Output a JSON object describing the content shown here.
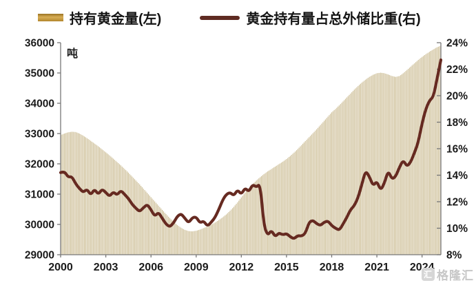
{
  "legend": {
    "items": [
      {
        "label": "持有黄金量(左)",
        "swatch": "bar",
        "color": "#bf9133"
      },
      {
        "label": "黄金持有量占总外储比重(右)",
        "swatch": "line",
        "color": "#5f2b22"
      }
    ]
  },
  "watermark": {
    "brand": "格隆汇",
    "logo_glyph": "汇"
  },
  "chart_data": {
    "type": "bar+line",
    "title": "",
    "unit_label": "吨",
    "left_axis": {
      "label": "吨",
      "range": [
        29000,
        36000
      ],
      "ticks": [
        36000,
        35000,
        34000,
        33000,
        32000,
        31000,
        30000,
        29000
      ]
    },
    "right_axis": {
      "range": [
        8,
        24
      ],
      "ticks": [
        "24%",
        "22%",
        "20%",
        "18%",
        "16%",
        "14%",
        "12%",
        "10%",
        "8%"
      ]
    },
    "x_axis": {
      "range": [
        2000,
        2025.25
      ],
      "ticks": [
        2000,
        2003,
        2006,
        2009,
        2012,
        2015,
        2018,
        2021,
        2024
      ]
    },
    "colors": {
      "bar": "#d0c29c",
      "line": "#662a21",
      "axis": "#777777",
      "tick_text": "#1a1a1a"
    },
    "x": [
      2000,
      2000.25,
      2000.5,
      2000.75,
      2001,
      2001.25,
      2001.5,
      2001.75,
      2002,
      2002.25,
      2002.5,
      2002.75,
      2003,
      2003.25,
      2003.5,
      2003.75,
      2004,
      2004.25,
      2004.5,
      2004.75,
      2005,
      2005.25,
      2005.5,
      2005.75,
      2006,
      2006.25,
      2006.5,
      2006.75,
      2007,
      2007.25,
      2007.5,
      2007.75,
      2008,
      2008.25,
      2008.5,
      2008.75,
      2009,
      2009.25,
      2009.5,
      2009.75,
      2010,
      2010.25,
      2010.5,
      2010.75,
      2011,
      2011.25,
      2011.5,
      2011.75,
      2012,
      2012.25,
      2012.5,
      2012.75,
      2013,
      2013.25,
      2013.5,
      2013.75,
      2014,
      2014.25,
      2014.5,
      2014.75,
      2015,
      2015.25,
      2015.5,
      2015.75,
      2016,
      2016.25,
      2016.5,
      2016.75,
      2017,
      2017.25,
      2017.5,
      2017.75,
      2018,
      2018.25,
      2018.5,
      2018.75,
      2019,
      2019.25,
      2019.5,
      2019.75,
      2020,
      2020.25,
      2020.5,
      2020.75,
      2021,
      2021.25,
      2021.5,
      2021.75,
      2022,
      2022.25,
      2022.5,
      2022.75,
      2023,
      2023.25,
      2023.5,
      2023.75,
      2024,
      2024.25,
      2024.5,
      2024.75,
      2025,
      2025.25
    ],
    "series": [
      {
        "name": "持有黄金量(左)",
        "type": "bar",
        "axis": "left",
        "unit": "吨",
        "color": "#d0c29c",
        "values": [
          32950,
          33000,
          33040,
          33060,
          33050,
          33000,
          32930,
          32850,
          32760,
          32670,
          32580,
          32480,
          32380,
          32280,
          32170,
          32060,
          31950,
          31830,
          31710,
          31580,
          31450,
          31320,
          31180,
          31040,
          30900,
          30760,
          30620,
          30480,
          30340,
          30210,
          30090,
          29980,
          29890,
          29820,
          29780,
          29770,
          29790,
          29830,
          29880,
          29930,
          29990,
          30060,
          30140,
          30230,
          30330,
          30450,
          30580,
          30730,
          30890,
          31050,
          31200,
          31330,
          31450,
          31560,
          31660,
          31750,
          31830,
          31910,
          31990,
          32070,
          32160,
          32260,
          32370,
          32490,
          32620,
          32750,
          32880,
          33010,
          33140,
          33280,
          33420,
          33560,
          33700,
          33810,
          33930,
          34060,
          34190,
          34320,
          34450,
          34570,
          34680,
          34780,
          34870,
          34940,
          34990,
          35010,
          34990,
          34950,
          34900,
          34870,
          34900,
          34990,
          35100,
          35210,
          35320,
          35430,
          35530,
          35620,
          35700,
          35780,
          35850,
          35900
        ]
      },
      {
        "name": "黄金持有量占总外储比重(右)",
        "type": "line",
        "axis": "right",
        "unit": "%",
        "color": "#662a21",
        "values": [
          14.2,
          14.3,
          13.85,
          13.9,
          13.35,
          13.0,
          12.7,
          12.95,
          12.5,
          12.95,
          12.55,
          12.95,
          12.7,
          12.4,
          12.75,
          12.5,
          12.85,
          12.55,
          12.25,
          11.8,
          11.5,
          11.25,
          11.55,
          11.8,
          11.4,
          10.9,
          11.2,
          10.75,
          10.3,
          10.1,
          10.4,
          10.9,
          11.1,
          10.75,
          10.4,
          10.8,
          10.85,
          10.4,
          10.55,
          10.15,
          10.45,
          10.8,
          11.4,
          12.1,
          12.55,
          12.7,
          12.45,
          12.9,
          12.55,
          13.05,
          12.75,
          13.3,
          13.1,
          13.35,
          10.2,
          9.45,
          9.85,
          9.35,
          9.65,
          9.5,
          9.6,
          9.35,
          9.2,
          9.45,
          9.4,
          9.6,
          10.45,
          10.6,
          10.35,
          10.2,
          10.45,
          10.55,
          10.2,
          10.0,
          9.85,
          10.3,
          10.8,
          11.4,
          11.7,
          12.3,
          13.3,
          14.35,
          13.9,
          13.2,
          13.55,
          12.85,
          13.4,
          14.35,
          13.7,
          13.9,
          14.6,
          15.15,
          14.65,
          15.0,
          15.7,
          16.5,
          17.9,
          19.0,
          19.65,
          19.9,
          21.3,
          22.7
        ]
      }
    ],
    "layout": {
      "grid": false,
      "legend_position": "top"
    }
  }
}
